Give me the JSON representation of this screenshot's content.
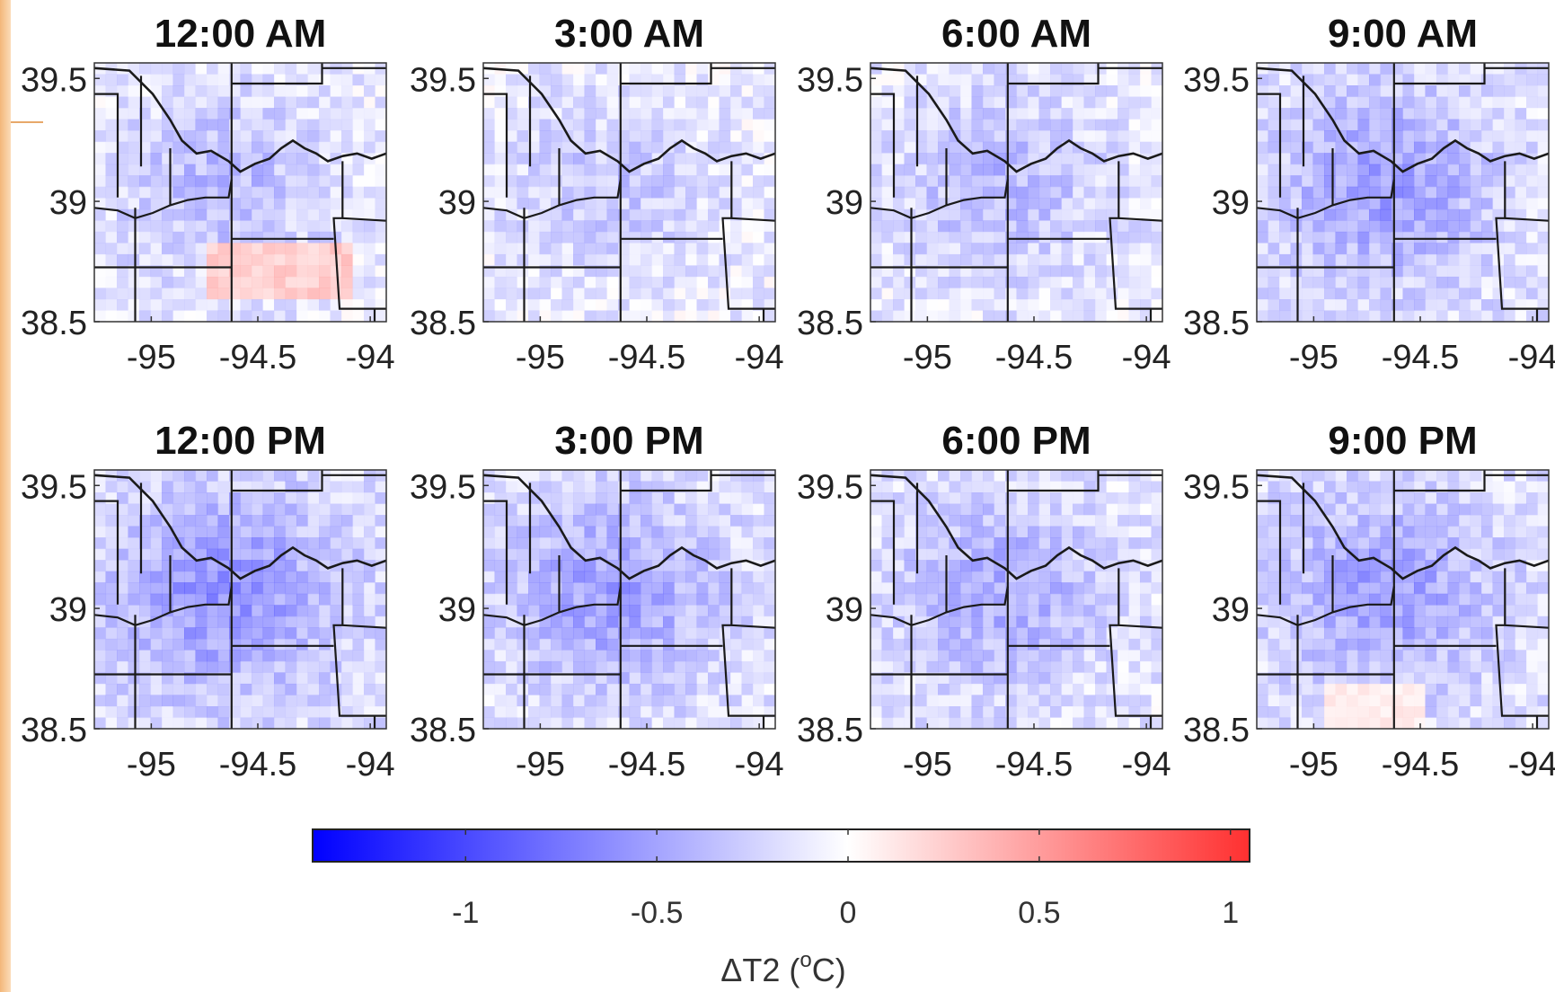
{
  "panels": [
    {
      "title": "12:00 AM",
      "mean_dt2": -0.25
    },
    {
      "title": "3:00 AM",
      "mean_dt2": -0.2
    },
    {
      "title": "6:00 AM",
      "mean_dt2": -0.25
    },
    {
      "title": "9:00 AM",
      "mean_dt2": -0.35
    },
    {
      "title": "12:00 PM",
      "mean_dt2": -0.4
    },
    {
      "title": "3:00 PM",
      "mean_dt2": -0.35
    },
    {
      "title": "6:00 PM",
      "mean_dt2": -0.3
    },
    {
      "title": "9:00 PM",
      "mean_dt2": -0.35
    }
  ],
  "axes": {
    "lat_ticks": [
      "39.5",
      "39",
      "38.5"
    ],
    "lon_ticks": [
      "-95",
      "-94.5",
      "-94"
    ]
  },
  "colorbar": {
    "label": "ΔT2 (",
    "label_sup": "o",
    "label_end": "C)",
    "range": [
      -1.4,
      1.05
    ],
    "ticks": [
      {
        "value": -1,
        "label": "-1"
      },
      {
        "value": -0.5,
        "label": "-0.5"
      },
      {
        "value": 0,
        "label": "0"
      },
      {
        "value": 0.5,
        "label": "0.5"
      },
      {
        "value": 1,
        "label": "1"
      }
    ],
    "colors": {
      "neg": "#0000ff",
      "mid": "#ffffff",
      "pos": "#ff3030"
    }
  },
  "colors": {
    "border": "#1a1a1a",
    "strip": "#f3b77a"
  }
}
